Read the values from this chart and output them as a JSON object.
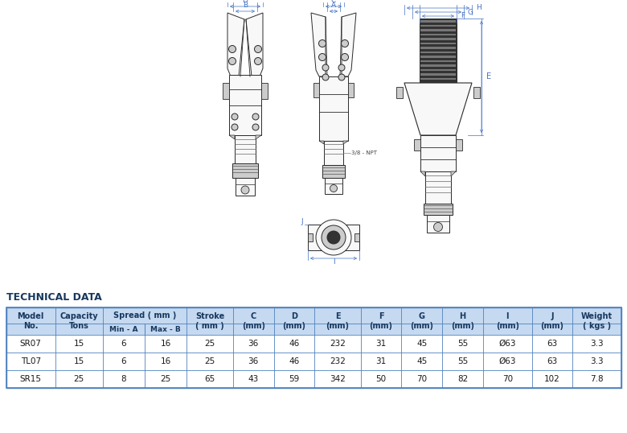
{
  "tech_data_label": "TECHNICAL DATA",
  "header_bg": "#c5d9f1",
  "header_bg2": "#dce6f1",
  "table_border": "#4f81bd",
  "header_text_color": "#17375e",
  "tech_label_color": "#17375e",
  "data_rows": [
    [
      "SR07",
      "15",
      "6",
      "16",
      "25",
      "36",
      "46",
      "232",
      "31",
      "45",
      "55",
      "Ø63",
      "63",
      "3.3"
    ],
    [
      "TL07",
      "15",
      "6",
      "16",
      "25",
      "36",
      "46",
      "232",
      "31",
      "45",
      "55",
      "Ø63",
      "63",
      "3.3"
    ],
    [
      "SR15",
      "25",
      "8",
      "25",
      "65",
      "43",
      "59",
      "342",
      "50",
      "70",
      "82",
      "70",
      "102",
      "7.8"
    ]
  ],
  "bg_color": "#ffffff",
  "line_color": "#2a2a2a",
  "dim_line_color": "#4472c4",
  "fill_dark": "#333333",
  "fill_mid": "#888888",
  "fill_light": "#cccccc",
  "fill_white": "#f8f8f8"
}
